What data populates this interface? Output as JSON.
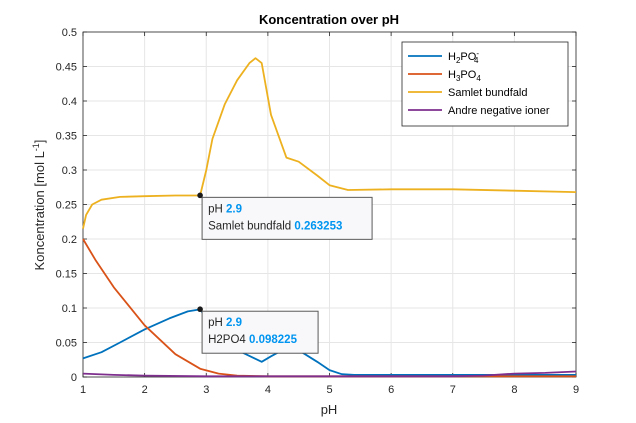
{
  "chart_data": {
    "type": "line",
    "title": "Koncentration over pH",
    "xlabel": "pH",
    "ylabel": "Koncentration [mol L",
    "ylabel_sup": "-1",
    "ylabel_tail": "]",
    "xlim": [
      1,
      9
    ],
    "ylim": [
      0,
      0.5
    ],
    "xticks": [
      1,
      2,
      3,
      4,
      5,
      6,
      7,
      8,
      9
    ],
    "yticks": [
      0,
      0.05,
      0.1,
      0.15,
      0.2,
      0.25,
      0.3,
      0.35,
      0.4,
      0.45,
      0.5
    ],
    "ytick_labels": [
      "0",
      "0.05",
      "0.1",
      "0.15",
      "0.2",
      "0.25",
      "0.3",
      "0.35",
      "0.4",
      "0.45",
      "0.5"
    ],
    "grid": true,
    "legend_position": "top-right",
    "series": [
      {
        "name": "H2PO4-",
        "legend_base": "H",
        "legend_sub1": "2",
        "legend_mid": "PO",
        "legend_sub2": "4",
        "legend_sup": "-",
        "color": "#0072BD",
        "x": [
          1,
          1.3,
          1.6,
          2,
          2.4,
          2.7,
          2.9,
          3.05,
          3.3,
          3.6,
          3.9,
          4.05,
          4.3,
          4.55,
          4.8,
          5.0,
          5.2,
          5.4,
          6,
          7,
          8,
          9
        ],
        "y": [
          0.027,
          0.036,
          0.05,
          0.069,
          0.085,
          0.095,
          0.098,
          0.08,
          0.057,
          0.035,
          0.022,
          0.03,
          0.042,
          0.036,
          0.022,
          0.01,
          0.004,
          0.003,
          0.003,
          0.003,
          0.003,
          0.003
        ]
      },
      {
        "name": "H3PO4",
        "legend_base": "H",
        "legend_sub1": "3",
        "legend_mid": "PO",
        "legend_sub2": "4",
        "legend_sup": "",
        "color": "#D95319",
        "x": [
          1,
          1.2,
          1.5,
          2.0,
          2.5,
          2.9,
          3.2,
          3.5,
          4,
          5,
          6,
          7,
          8,
          9
        ],
        "y": [
          0.2,
          0.17,
          0.13,
          0.075,
          0.033,
          0.012,
          0.005,
          0.002,
          0.001,
          0.001,
          0.001,
          0.001,
          0.001,
          0.001
        ]
      },
      {
        "name": "Samlet bundfald",
        "legend_label": "Samlet bundfald",
        "color": "#EDB120",
        "x": [
          1,
          1.05,
          1.15,
          1.3,
          1.6,
          2.0,
          2.5,
          2.9,
          3.0,
          3.1,
          3.3,
          3.5,
          3.7,
          3.8,
          3.9,
          4.05,
          4.3,
          4.5,
          4.8,
          5.0,
          5.3,
          6,
          7,
          8,
          9
        ],
        "y": [
          0.215,
          0.235,
          0.25,
          0.257,
          0.261,
          0.262,
          0.263,
          0.263,
          0.3,
          0.345,
          0.395,
          0.43,
          0.455,
          0.462,
          0.455,
          0.38,
          0.318,
          0.312,
          0.292,
          0.278,
          0.271,
          0.272,
          0.272,
          0.27,
          0.268
        ]
      },
      {
        "name": "Andre negative ioner",
        "legend_label": "Andre negative ioner",
        "color": "#7E2F8E",
        "x": [
          1,
          1.5,
          2,
          3,
          4,
          5,
          6,
          7,
          7.5,
          8,
          8.5,
          9
        ],
        "y": [
          0.005,
          0.003,
          0.002,
          0.001,
          0.001,
          0.001,
          0.001,
          0.001,
          0.002,
          0.005,
          0.006,
          0.008
        ]
      }
    ],
    "datatips": [
      {
        "series": "Samlet bundfald",
        "x": 2.9,
        "y": 0.263253,
        "line1_label": "pH",
        "line1_value": "2.9",
        "line2_label": "Samlet bundfald",
        "line2_value": "0.263253"
      },
      {
        "series": "H2PO4-",
        "x": 2.9,
        "y": 0.098225,
        "line1_label": "pH",
        "line1_value": "2.9",
        "line2_label": "H2PO4",
        "line2_value": "0.098225"
      }
    ],
    "datatip_value_color": "#0095F0"
  }
}
